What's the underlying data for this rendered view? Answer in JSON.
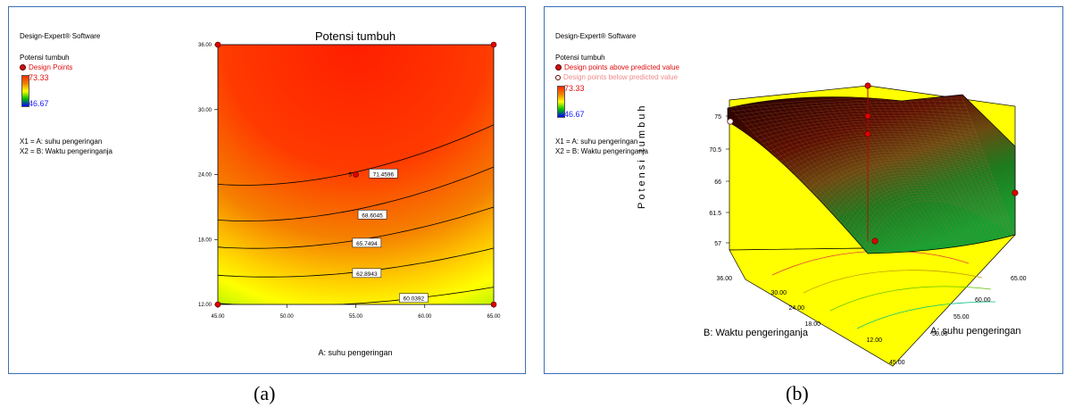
{
  "panel_a": {
    "software": "Design-Expert® Software",
    "response": "Potensi tumbuh",
    "legend_points": "Design Points",
    "high": "73.33",
    "low": "46.67",
    "x1": "X1 = A: suhu pengeringan",
    "x2": "X2 = B: Waktu pengeringanja",
    "caption": "(a)"
  },
  "panel_b": {
    "software": "Design-Expert® Software",
    "response": "Potensi tumbuh",
    "legend_above": "Design points above predicted value",
    "legend_below": "Design points below predicted value",
    "high": "73.33",
    "low": "46.67",
    "x1": "X1 = A: suhu pengeringan",
    "x2": "X2 = B: Waktu pengeringanja",
    "caption": "(b)"
  },
  "chart_data": [
    {
      "type": "contour",
      "title": "Potensi tumbuh",
      "xlabel": "A: suhu pengeringan",
      "ylabel": "",
      "xlim": [
        45,
        65
      ],
      "ylim": [
        12,
        36
      ],
      "xticks": [
        "45.00",
        "50.00",
        "55.00",
        "60.00",
        "65.00"
      ],
      "yticks": [
        "12.00",
        "18.00",
        "24.00",
        "30.00",
        "36.00"
      ],
      "contour_levels": [
        "71.4596",
        "68.6045",
        "65.7494",
        "62.8943",
        "60.0392"
      ],
      "design_points": [
        {
          "x": 45,
          "y": 12
        },
        {
          "x": 65,
          "y": 12
        },
        {
          "x": 45,
          "y": 36
        },
        {
          "x": 65,
          "y": 36
        },
        {
          "x": 55,
          "y": 24,
          "label": "5"
        }
      ],
      "colors": {
        "high": "#ff2a00",
        "mid": "#ffff00",
        "low": "#00c000"
      }
    },
    {
      "type": "surface",
      "zlabel": "Potensi tumbuh",
      "xlabel": "A: suhu pengeringan",
      "ylabel": "B: Waktu pengeringanja",
      "xticks": [
        "45.00",
        "50.00",
        "55.00",
        "60.00",
        "65.00"
      ],
      "yticks": [
        "12.00",
        "18.00",
        "24.00",
        "30.00",
        "36.00"
      ],
      "zticks": [
        "57",
        "61.5",
        "66",
        "70.5",
        "75"
      ],
      "background": "#ffff00"
    }
  ]
}
